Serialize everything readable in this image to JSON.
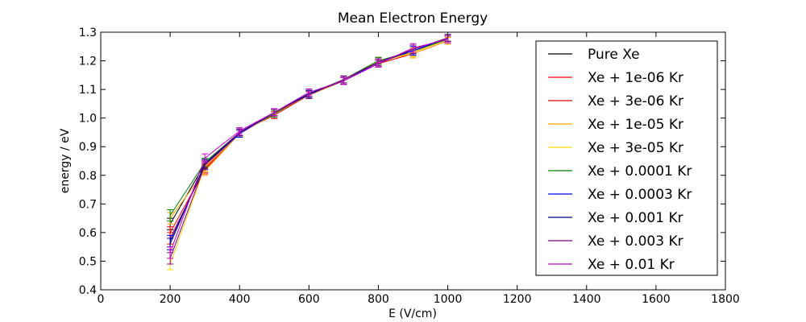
{
  "chart_data": {
    "type": "line",
    "title": "Mean Electron Energy",
    "xlabel": "E (V/cm)",
    "ylabel": "energy / eV",
    "xlim": [
      0,
      1800
    ],
    "ylim": [
      0.4,
      1.3
    ],
    "xticks": [
      0,
      200,
      400,
      600,
      800,
      1000,
      1200,
      1400,
      1600,
      1800
    ],
    "xtick_labels": [
      "0",
      "200",
      "400",
      "600",
      "800",
      "1000",
      "1200",
      "1400",
      "1600",
      "1800"
    ],
    "yticks": [
      0.4,
      0.5,
      0.6,
      0.7,
      0.8,
      0.9,
      1.0,
      1.1,
      1.2,
      1.3
    ],
    "ytick_labels": [
      "0.4",
      "0.5",
      "0.6",
      "0.7",
      "0.8",
      "0.9",
      "1.0",
      "1.1",
      "1.2",
      "1.3"
    ],
    "grid": false,
    "legend_position": "right",
    "error_bars": true,
    "x": [
      200,
      300,
      400,
      500,
      600,
      700,
      800,
      900,
      1000
    ],
    "series": [
      {
        "name": "Pure Xe",
        "color": "#000000",
        "values": [
          0.63,
          0.84,
          0.95,
          1.02,
          1.08,
          1.135,
          1.2,
          1.23,
          1.28
        ],
        "errors": [
          0.02,
          0.015,
          0.012,
          0.012,
          0.012,
          0.012,
          0.012,
          0.015,
          0.012
        ]
      },
      {
        "name": "Xe + 1e-06 Kr",
        "color": "#ff0000",
        "values": [
          0.6,
          0.82,
          0.945,
          1.015,
          1.085,
          1.13,
          1.19,
          1.225,
          1.27
        ],
        "errors": [
          0.02,
          0.015,
          0.012,
          0.012,
          0.012,
          0.012,
          0.012,
          0.015,
          0.012
        ]
      },
      {
        "name": "Xe + 3e-06 Kr",
        "color": "#dd0000",
        "values": [
          0.58,
          0.825,
          0.95,
          1.01,
          1.08,
          1.13,
          1.195,
          1.23,
          1.275
        ],
        "errors": [
          0.02,
          0.015,
          0.012,
          0.012,
          0.012,
          0.012,
          0.012,
          0.015,
          0.012
        ]
      },
      {
        "name": "Xe + 1e-05 Kr",
        "color": "#ffa500",
        "values": [
          0.65,
          0.815,
          0.945,
          1.015,
          1.08,
          1.13,
          1.2,
          1.225,
          1.27
        ],
        "errors": [
          0.02,
          0.015,
          0.012,
          0.012,
          0.012,
          0.012,
          0.012,
          0.015,
          0.012
        ]
      },
      {
        "name": "Xe + 3e-05 Kr",
        "color": "#ffd700",
        "values": [
          0.49,
          0.83,
          0.945,
          1.02,
          1.085,
          1.13,
          1.195,
          1.23,
          1.275
        ],
        "errors": [
          0.02,
          0.015,
          0.012,
          0.012,
          0.012,
          0.012,
          0.012,
          0.015,
          0.012
        ]
      },
      {
        "name": "Xe + 0.0001 Kr",
        "color": "#008000",
        "values": [
          0.66,
          0.845,
          0.95,
          1.015,
          1.085,
          1.135,
          1.2,
          1.235,
          1.275
        ],
        "errors": [
          0.02,
          0.015,
          0.012,
          0.012,
          0.012,
          0.012,
          0.012,
          0.015,
          0.012
        ]
      },
      {
        "name": "Xe + 0.0003 Kr",
        "color": "#0000ff",
        "values": [
          0.57,
          0.835,
          0.945,
          1.02,
          1.085,
          1.13,
          1.195,
          1.235,
          1.28
        ],
        "errors": [
          0.02,
          0.015,
          0.012,
          0.012,
          0.012,
          0.012,
          0.012,
          0.015,
          0.012
        ]
      },
      {
        "name": "Xe + 0.001 Kr",
        "color": "#000088",
        "values": [
          0.56,
          0.84,
          0.95,
          1.02,
          1.085,
          1.13,
          1.19,
          1.24,
          1.28
        ],
        "errors": [
          0.02,
          0.015,
          0.012,
          0.012,
          0.012,
          0.012,
          0.012,
          0.015,
          0.012
        ]
      },
      {
        "name": "Xe + 0.003 Kr",
        "color": "#800080",
        "values": [
          0.51,
          0.835,
          0.95,
          1.02,
          1.08,
          1.135,
          1.195,
          1.24,
          1.28
        ],
        "errors": [
          0.02,
          0.015,
          0.012,
          0.012,
          0.012,
          0.012,
          0.012,
          0.015,
          0.012
        ]
      },
      {
        "name": "Xe + 0.01 Kr",
        "color": "#cc00cc",
        "values": [
          0.53,
          0.86,
          0.955,
          1.02,
          1.09,
          1.13,
          1.19,
          1.245,
          1.275
        ],
        "errors": [
          0.02,
          0.015,
          0.012,
          0.012,
          0.012,
          0.012,
          0.012,
          0.015,
          0.012
        ]
      }
    ]
  }
}
